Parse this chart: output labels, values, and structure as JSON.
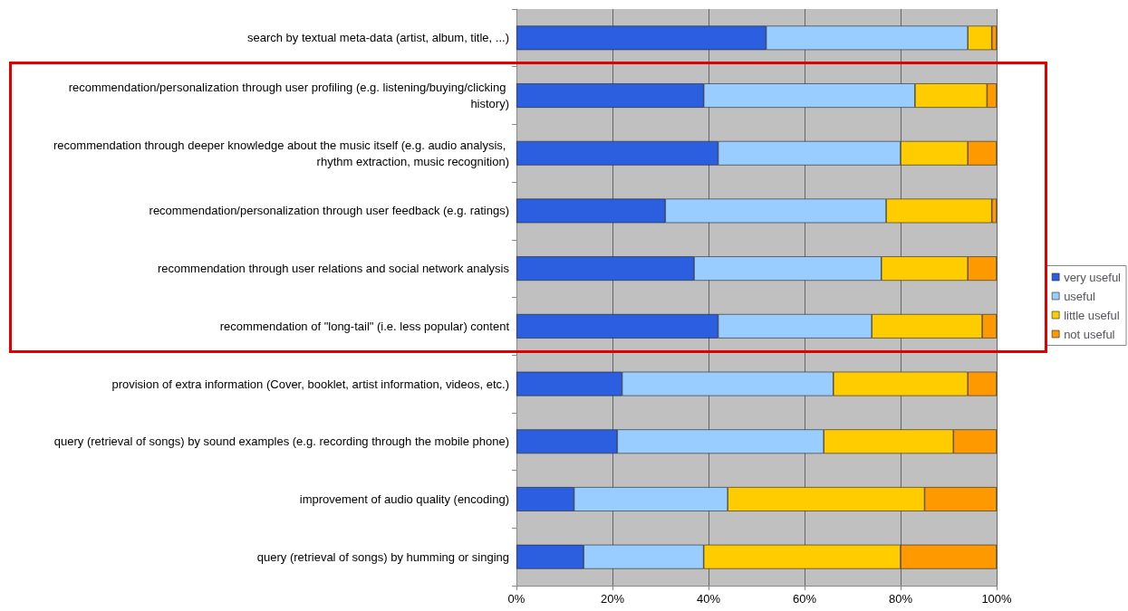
{
  "chart_data": {
    "type": "bar",
    "orientation": "horizontal",
    "stacked": true,
    "categories": [
      "search by textual meta-data (artist, album, title, ...)",
      "recommendation/personalization through user profiling (e.g. listening/buying/clicking history)",
      "recommendation through deeper knowledge about the music itself (e.g. audio analysis, rhythm extraction, music recognition)",
      "recommendation/personalization through user feedback (e.g. ratings)",
      "recommendation through user relations and social network analysis",
      "recommendation of \"long-tail\" (i.e. less popular) content",
      "provision of extra information (Cover, booklet, artist information, videos, etc.)",
      "query (retrieval of songs) by sound examples (e.g. recording through the mobile phone)",
      "improvement of audio quality (encoding)",
      "query (retrieval of songs) by humming or singing"
    ],
    "series": [
      {
        "name": "very useful",
        "color": "#2b5fe0",
        "values": [
          52,
          39,
          42,
          31,
          37,
          42,
          22,
          21,
          12,
          14
        ]
      },
      {
        "name": "useful",
        "color": "#99ccff",
        "values": [
          42,
          44,
          38,
          46,
          39,
          32,
          44,
          43,
          32,
          25
        ]
      },
      {
        "name": "little useful",
        "color": "#ffcc00",
        "values": [
          5,
          15,
          14,
          22,
          18,
          23,
          28,
          27,
          41,
          41
        ]
      },
      {
        "name": "not useful",
        "color": "#ff9900",
        "values": [
          1,
          2,
          6,
          1,
          6,
          3,
          6,
          9,
          15,
          20
        ]
      }
    ],
    "xlim": [
      0,
      100
    ],
    "xticks": [
      {
        "value": 0,
        "label": "0%"
      },
      {
        "value": 20,
        "label": "20%"
      },
      {
        "value": 40,
        "label": "40%"
      },
      {
        "value": 60,
        "label": "60%"
      },
      {
        "value": 80,
        "label": "80%"
      },
      {
        "value": 100,
        "label": "100%"
      }
    ],
    "grid": "x",
    "legend": "right"
  }
}
